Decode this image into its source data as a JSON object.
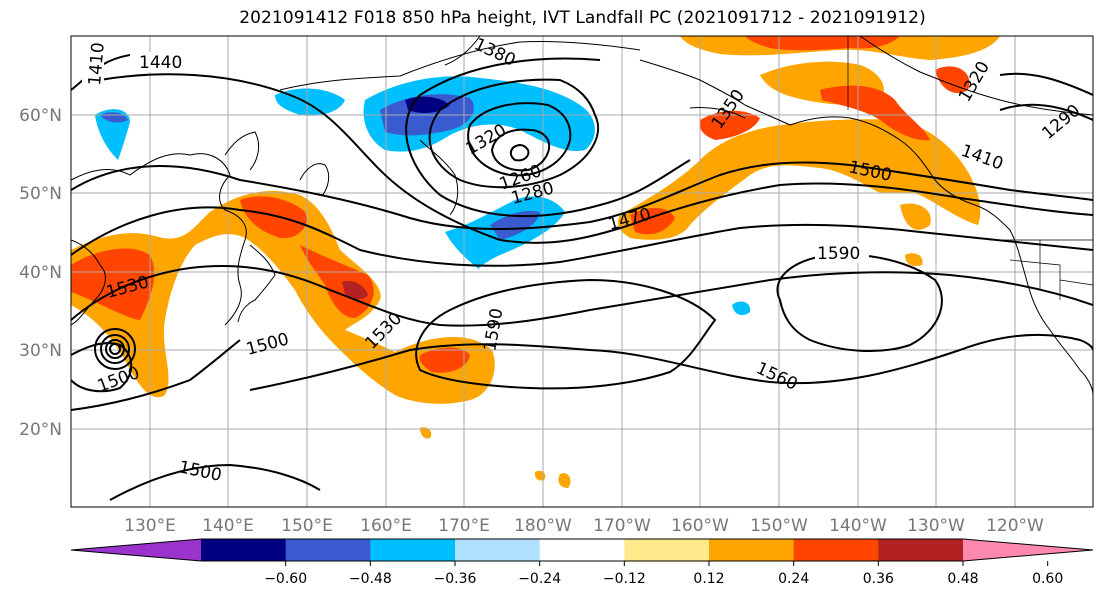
{
  "title": "2021091412 F018 850 hPa height, IVT Landfall PC (2021091712 - 2021091912)",
  "map": {
    "lat_labels": [
      "60°N",
      "50°N",
      "40°N",
      "30°N",
      "20°N"
    ],
    "lon_labels": [
      "130°E",
      "140°E",
      "150°E",
      "160°E",
      "170°E",
      "180°W",
      "170°W",
      "160°W",
      "150°W",
      "140°W",
      "130°W",
      "120°W"
    ],
    "contour_labels": [
      "1410",
      "1440",
      "1380",
      "1320",
      "1260",
      "1280",
      "1350",
      "1290",
      "1320",
      "1410",
      "1500",
      "1470",
      "1590",
      "1530",
      "1500",
      "1530",
      "1590",
      "1560",
      "1500",
      "1500"
    ]
  },
  "colorbar": {
    "ticks": [
      "−0.60",
      "−0.48",
      "−0.36",
      "−0.24",
      "−0.12",
      "0.12",
      "0.24",
      "0.36",
      "0.48",
      "0.60"
    ],
    "colors": [
      "#9933cc",
      "#000080",
      "#3a5bcf",
      "#00bfff",
      "#b0e0ff",
      "#ffffff",
      "#ffe98a",
      "#ffa500",
      "#ff4500",
      "#b22222",
      "#ff88b0"
    ]
  }
}
